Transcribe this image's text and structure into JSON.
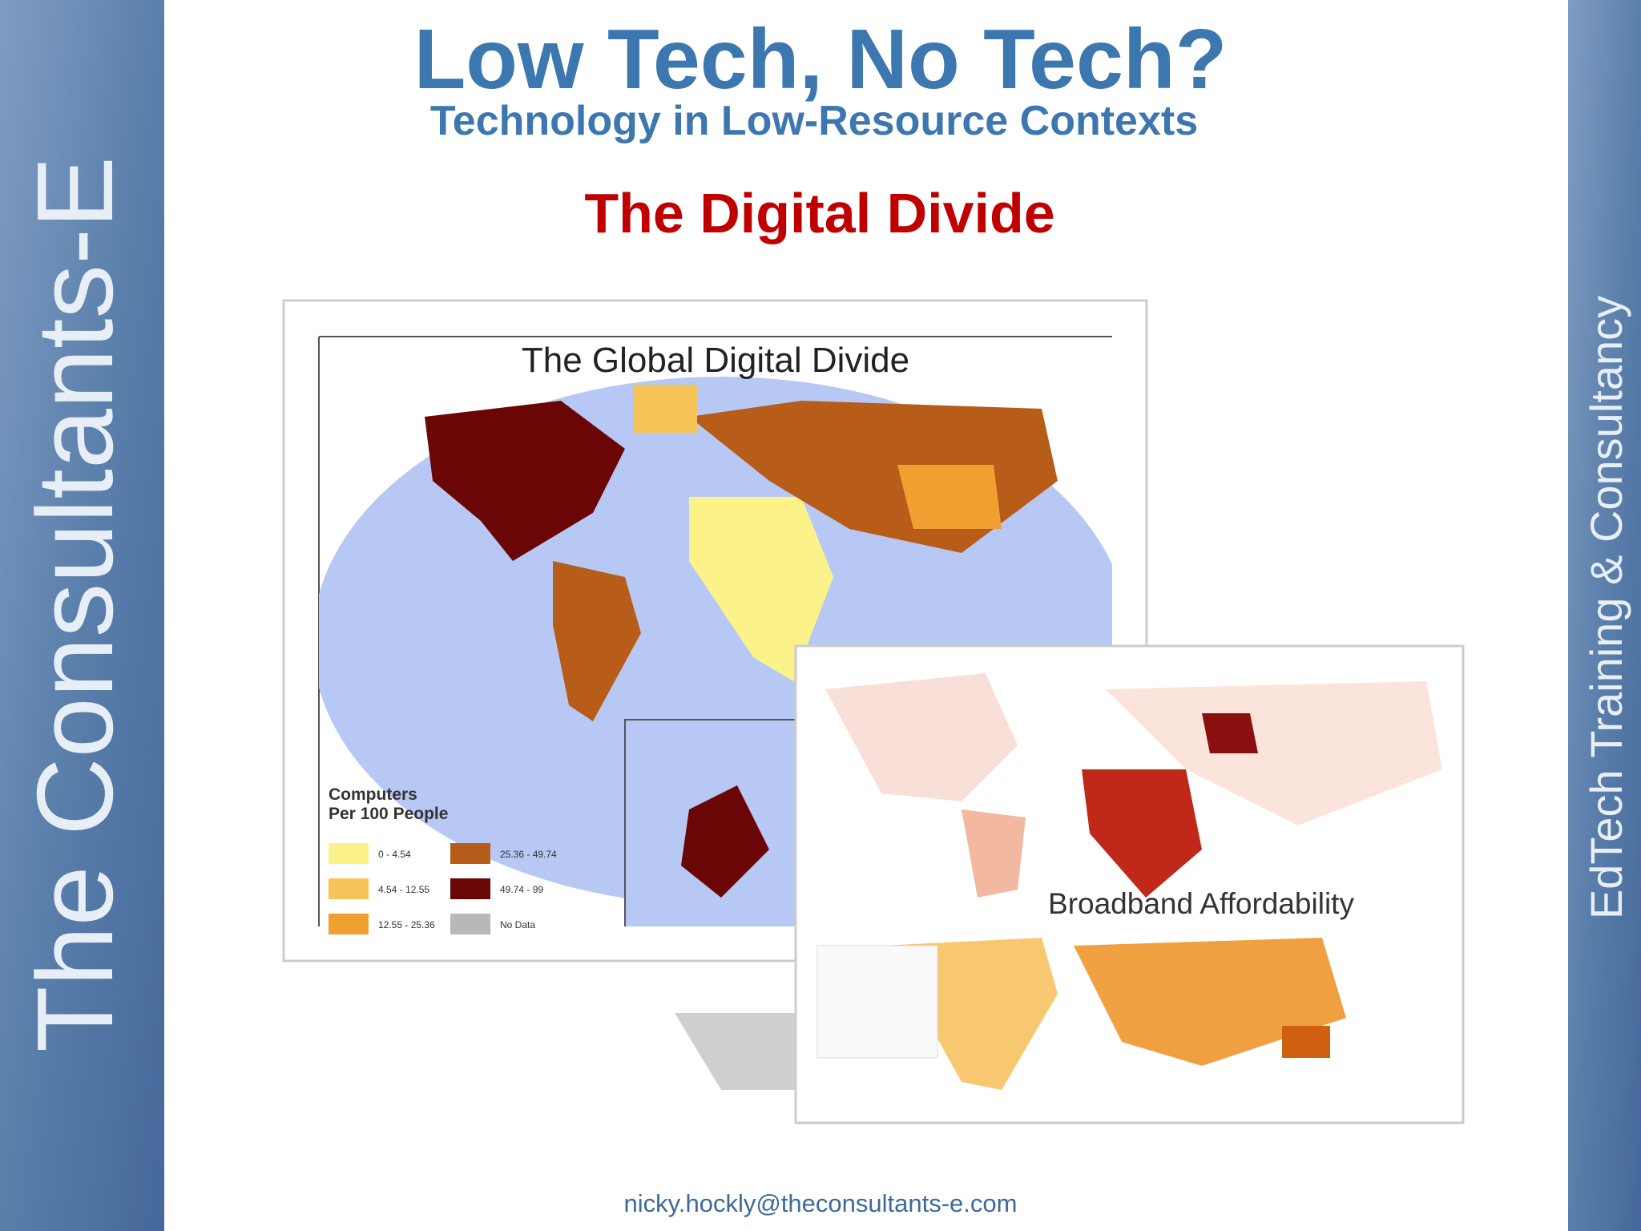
{
  "sidebar": {
    "brand": "The Consultants-E",
    "tagline": "EdTech Training & Consultancy"
  },
  "header": {
    "title": "Low Tech, No Tech?",
    "subtitle": "Technology in Low-Resource Contexts",
    "heading": "The Digital Divide"
  },
  "maps": [
    {
      "title": "The Global Digital Divide",
      "legend": {
        "title": [
          "Computers",
          "Per 100 People"
        ],
        "items": [
          {
            "label": "0 - 4.54",
            "color": "#fbf38a"
          },
          {
            "label": "4.54 - 12.55",
            "color": "#f7c45a"
          },
          {
            "label": "12.55 - 25.36",
            "color": "#f0a030"
          },
          {
            "label": "25.36 - 49.74",
            "color": "#b85c1a"
          },
          {
            "label": "49.74 - 99",
            "color": "#6b0606"
          },
          {
            "label": "No Data",
            "color": "#b8b8b8"
          }
        ]
      }
    },
    {
      "title": "Broadband Affordability"
    }
  ],
  "footer": {
    "email": "nicky.hockly@theconsultants-e.com"
  }
}
